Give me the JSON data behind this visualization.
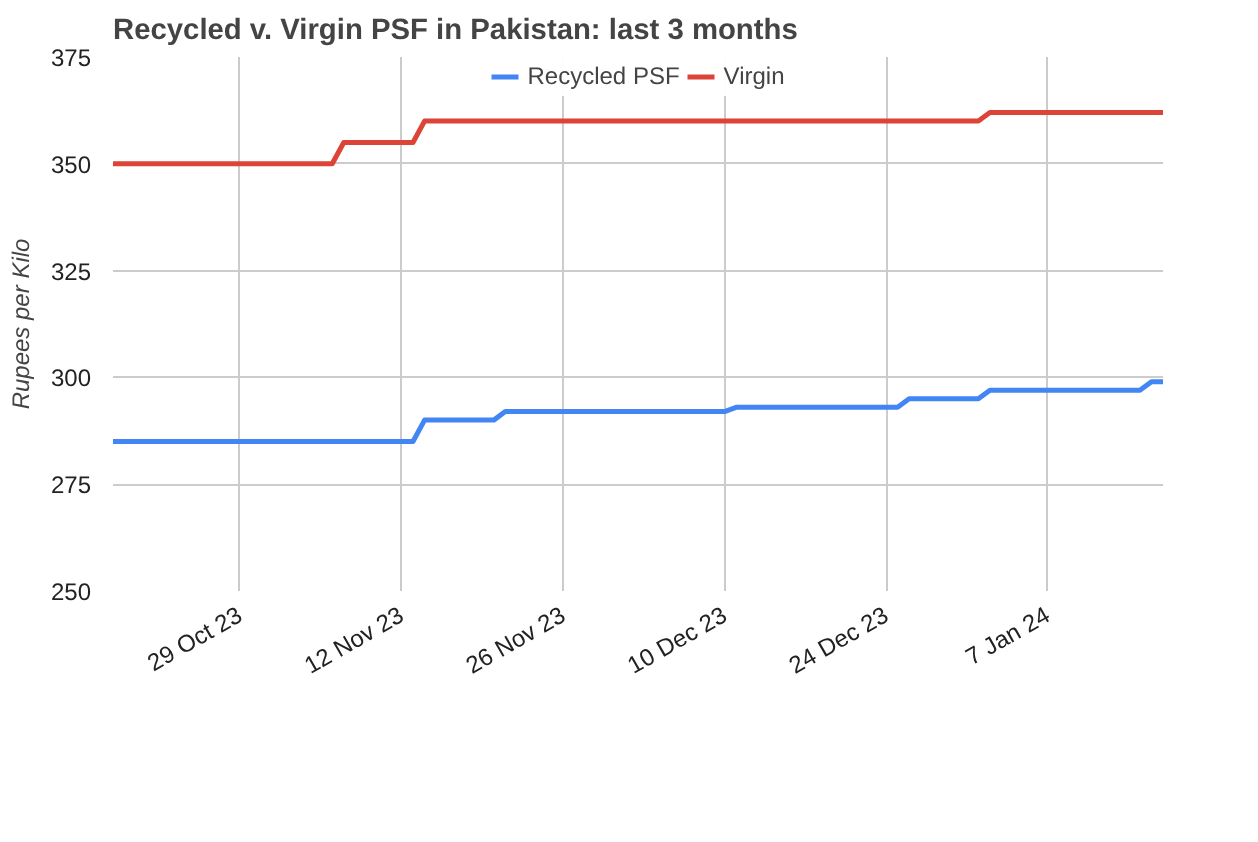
{
  "chart_data": {
    "type": "line",
    "title": "Recycled v. Virgin PSF in Pakistan: last 3 months",
    "ylabel": "Rupees per Kilo",
    "xlim": [
      "2023-10-18",
      "2024-01-17"
    ],
    "xticks": [
      {
        "value": "2023-10-29",
        "label": "29 Oct 23"
      },
      {
        "value": "2023-11-12",
        "label": "12 Nov 23"
      },
      {
        "value": "2023-11-26",
        "label": "26 Nov 23"
      },
      {
        "value": "2023-12-10",
        "label": "10 Dec 23"
      },
      {
        "value": "2023-12-24",
        "label": "24 Dec 23"
      },
      {
        "value": "2024-01-07",
        "label": "7 Jan 24"
      }
    ],
    "ylim": [
      250,
      375
    ],
    "yticks": [
      250,
      275,
      300,
      325,
      350,
      375
    ],
    "grid": true,
    "legend": "top",
    "line_style": "solid",
    "marker": "none",
    "series": [
      {
        "name": "Recycled PSF",
        "color": "#4285f4",
        "x": [
          "2023-10-18",
          "2023-11-13",
          "2023-11-14",
          "2023-11-20",
          "2023-11-21",
          "2023-12-10",
          "2023-12-11",
          "2023-12-25",
          "2023-12-26",
          "2024-01-01",
          "2024-01-02",
          "2024-01-15",
          "2024-01-16",
          "2024-01-17"
        ],
        "values": [
          285,
          285,
          290,
          290,
          292,
          292,
          293,
          293,
          295,
          295,
          297,
          297,
          299,
          299
        ]
      },
      {
        "name": "Virgin",
        "color": "#db4437",
        "x": [
          "2023-10-18",
          "2023-11-06",
          "2023-11-07",
          "2023-11-13",
          "2023-11-14",
          "2024-01-01",
          "2024-01-02",
          "2024-01-17"
        ],
        "values": [
          350,
          350,
          355,
          355,
          360,
          360,
          362,
          362
        ]
      }
    ]
  }
}
